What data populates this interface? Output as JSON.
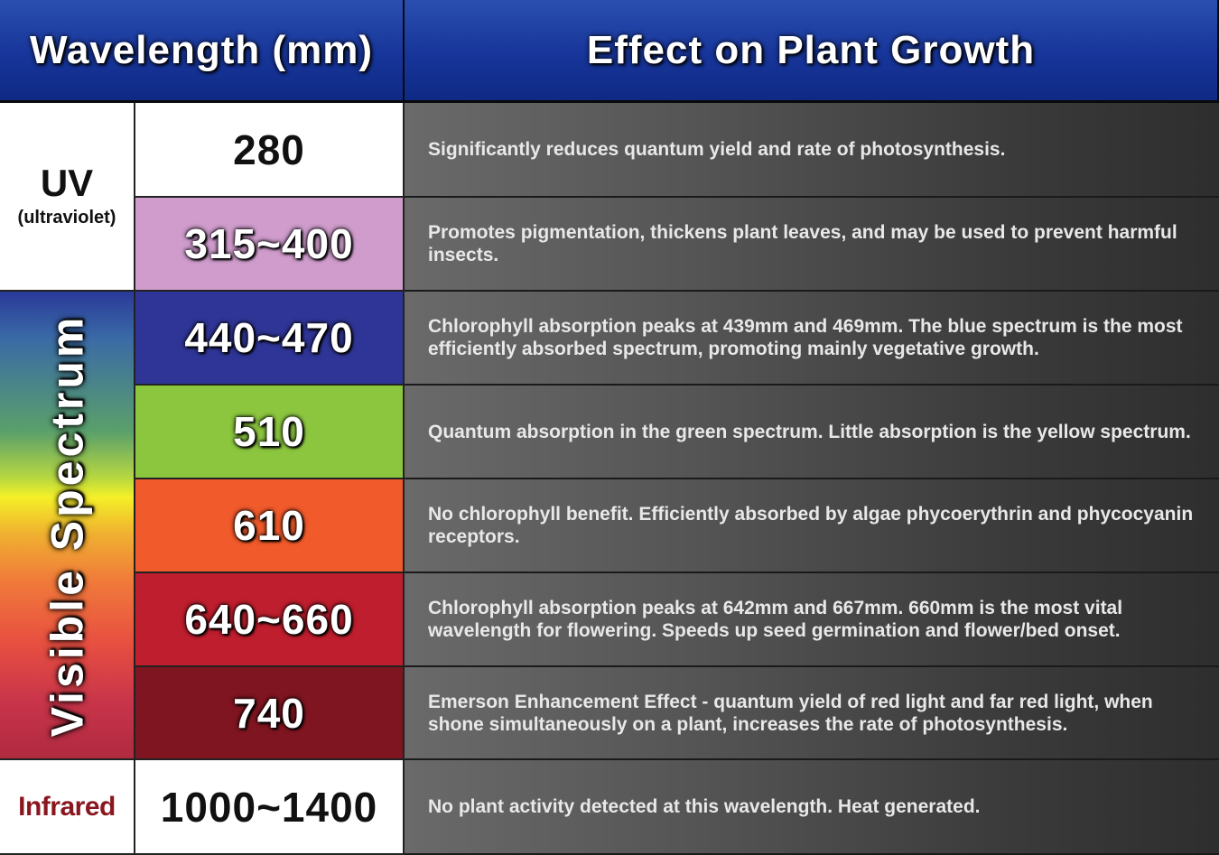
{
  "header": {
    "col1": "Wavelength (mm)",
    "col2": "Effect on Plant Growth"
  },
  "groups": {
    "uv_main": "UV",
    "uv_sub": "(ultraviolet)",
    "visible": "Visible Spectrum",
    "infrared": "Infrared"
  },
  "rows": [
    {
      "wavelength": "280",
      "effect": "Significantly reduces quantum yield and rate of photosynthesis.",
      "color": "#ffffff"
    },
    {
      "wavelength": "315~400",
      "effect": "Promotes pigmentation, thickens plant leaves, and may be used to prevent harmful insects.",
      "color": "#cf9ccc"
    },
    {
      "wavelength": "440~470",
      "effect": "Chlorophyll absorption peaks at 439mm and 469mm. The blue spectrum is the most efficiently absorbed spectrum, promoting mainly vegetative growth.",
      "color": "#2f3596"
    },
    {
      "wavelength": "510",
      "effect": "Quantum absorption in the green spectrum. Little absorption is the yellow spectrum.",
      "color": "#8cc63f"
    },
    {
      "wavelength": "610",
      "effect": "No chlorophyll benefit. Efficiently absorbed by algae phycoerythrin and phycocyanin receptors.",
      "color": "#f15a2b"
    },
    {
      "wavelength": "640~660",
      "effect": "Chlorophyll absorption peaks at 642mm and 667mm. 660mm is the most vital wavelength for flowering. Speeds up seed germination and flower/bed onset.",
      "color": "#be1e2d"
    },
    {
      "wavelength": "740",
      "effect": "Emerson Enhancement Effect - quantum yield of red light and far red light, when shone simultaneously on a plant, increases the rate of photosynthesis.",
      "color": "#7f1520"
    },
    {
      "wavelength": "1000~1400",
      "effect": "No plant activity detected at this wavelength. Heat generated.",
      "color": "#ffffff"
    }
  ]
}
